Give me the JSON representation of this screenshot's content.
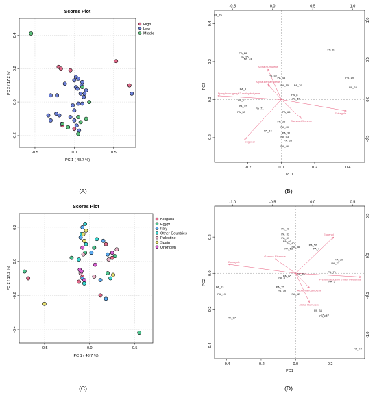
{
  "colors": {
    "High": "#e06a8a",
    "Low": "#6b7fd6",
    "Middle": "#5cc07a",
    "Bulgaria": "#e06a8a",
    "Egypt": "#4fc38f",
    "Italy": "#5aa9ef",
    "Other Countries": "#39d6d0",
    "Palestine": "#e9b3c8",
    "Spain": "#e5e070",
    "Unknown": "#d75fd0",
    "arrow": "#e8587a"
  },
  "chart_data": [
    {
      "panel": "(A)",
      "type": "scatter",
      "title": "Scores Plot",
      "xlabel": "PC 1 ( 48.7 %)",
      "ylabel": "PC 2 ( 17.2 %)",
      "xlim": [
        -0.7,
        0.78
      ],
      "ylim": [
        -0.27,
        0.5
      ],
      "xticks": [
        "-0.5",
        "0.0",
        "0.5"
      ],
      "xtick_values": [
        -0.5,
        0,
        0.5
      ],
      "yticks": [
        "-0.2",
        "0.0",
        "0.2",
        "0.4"
      ],
      "ytick_values": [
        -0.2,
        0,
        0.2,
        0.4
      ],
      "grid": true,
      "legend": "top-right",
      "legend_entries": [
        "High",
        "Low",
        "Middle"
      ],
      "series": [
        {
          "name": "High",
          "points": [
            [
              -0.2,
              0.21
            ],
            [
              -0.17,
              0.2
            ],
            [
              0.53,
              0.245
            ],
            [
              0.7,
              0.1
            ],
            [
              -0.05,
              0.19
            ],
            [
              -0.15,
              -0.14
            ],
            [
              0.0,
              -0.16
            ]
          ]
        },
        {
          "name": "Low",
          "points": [
            [
              0.73,
              0.05
            ],
            [
              -0.3,
              0.04
            ],
            [
              -0.22,
              0.04
            ],
            [
              -0.33,
              -0.08
            ],
            [
              -0.3,
              -0.11
            ],
            [
              -0.23,
              -0.07
            ],
            [
              -0.19,
              -0.08
            ],
            [
              -0.16,
              -0.13
            ],
            [
              -0.12,
              0.11
            ],
            [
              0.0,
              0.13
            ],
            [
              0.02,
              0.15
            ],
            [
              0.05,
              0.14
            ],
            [
              0.1,
              0.12
            ],
            [
              0.13,
              0.05
            ],
            [
              0.15,
              0.07
            ],
            [
              0.02,
              0.09
            ],
            [
              0.08,
              0.05
            ],
            [
              0.05,
              -0.01
            ],
            [
              -0.02,
              -0.02
            ],
            [
              -0.05,
              -0.09
            ],
            [
              0.0,
              -0.11
            ],
            [
              0.03,
              -0.14
            ],
            [
              0.06,
              -0.17
            ],
            [
              0.1,
              -0.01
            ],
            [
              0.12,
              0.03
            ],
            [
              0.09,
              0.1
            ],
            [
              0.04,
              0.08
            ],
            [
              0.0,
              -0.05
            ]
          ]
        },
        {
          "name": "Middle",
          "points": [
            [
              -0.55,
              0.41
            ],
            [
              0.19,
              0.0
            ],
            [
              0.15,
              -0.1
            ],
            [
              -0.15,
              -0.13
            ],
            [
              0.05,
              -0.09
            ],
            [
              0.08,
              -0.12
            ],
            [
              -0.08,
              -0.15
            ],
            [
              0.1,
              0.09
            ],
            [
              0.05,
              -0.19
            ]
          ]
        }
      ]
    },
    {
      "panel": "(B)",
      "type": "scatter",
      "title": "",
      "xlabel": "PC1",
      "ylabel": "PC2",
      "xlim": [
        -0.4,
        0.5
      ],
      "ylim": [
        -0.33,
        0.47
      ],
      "xticks": [
        "-0.2",
        "0.0",
        "0.2",
        "0.4"
      ],
      "xtick_values": [
        -0.2,
        0,
        0.2,
        0.4
      ],
      "yticks": [
        "-0.2",
        "0.0",
        "0.2",
        "0.4"
      ],
      "ytick_values": [
        -0.2,
        0,
        0.2,
        0.4
      ],
      "top_ticks": [
        "-0.5",
        "0.0",
        "0.5",
        "1.0"
      ],
      "top_tick_values": [
        -0.5,
        0,
        0.5,
        1
      ],
      "right_ticks": [
        "-0.5",
        "0.0",
        "0.5",
        "1.0"
      ],
      "right_tick_values": [
        -0.5,
        0,
        0.5,
        1
      ],
      "observations": [
        {
          "label": "PA_75",
          "x": -0.38,
          "y": 0.44
        },
        {
          "label": "PA_87",
          "x": 0.3,
          "y": 0.26
        },
        {
          "label": "PA_19",
          "x": 0.41,
          "y": 0.11
        },
        {
          "label": "PA_63",
          "x": 0.43,
          "y": 0.06
        },
        {
          "label": "PA_28",
          "x": -0.23,
          "y": 0.24
        },
        {
          "label": "PA_26",
          "x": -0.22,
          "y": 0.22
        },
        {
          "label": "PA_34",
          "x": -0.2,
          "y": 0.21
        },
        {
          "label": "PA_3",
          "x": -0.23,
          "y": 0.05
        },
        {
          "label": "PA_7",
          "x": -0.24,
          "y": -0.01
        },
        {
          "label": "PA_72",
          "x": -0.23,
          "y": -0.04
        },
        {
          "label": "PA_30",
          "x": -0.24,
          "y": -0.07
        },
        {
          "label": "PA_71",
          "x": -0.13,
          "y": -0.05
        },
        {
          "label": "PA_56",
          "x": 0.09,
          "y": 0.0
        },
        {
          "label": "PA_8",
          "x": 0.08,
          "y": 0.02
        },
        {
          "label": "PA_48",
          "x": 0.0,
          "y": 0.11
        },
        {
          "label": "PA_40",
          "x": 0.02,
          "y": -0.15
        },
        {
          "label": "PA_38",
          "x": 0.0,
          "y": -0.12
        },
        {
          "label": "PA_66",
          "x": 0.03,
          "y": -0.07
        },
        {
          "label": "PA_15",
          "x": 0.02,
          "y": 0.07
        },
        {
          "label": "PA_79",
          "x": 0.1,
          "y": 0.07
        },
        {
          "label": "PA_53",
          "x": 0.02,
          "y": -0.2
        },
        {
          "label": "PA_31",
          "x": 0.03,
          "y": -0.18
        },
        {
          "label": "PA_46",
          "x": 0.02,
          "y": -0.25
        },
        {
          "label": "PA_54",
          "x": -0.08,
          "y": -0.17
        },
        {
          "label": "PA_33",
          "x": 0.04,
          "y": -0.22
        },
        {
          "label": "PA_52",
          "x": -0.05,
          "y": 0.12
        }
      ],
      "variables": [
        {
          "label": "Eugenol",
          "x": -0.22,
          "y": -0.21
        },
        {
          "label": "Estragole",
          "x": 0.39,
          "y": -0.06
        },
        {
          "label": "Gamma-Elemene",
          "x": 0.12,
          "y": -0.1
        },
        {
          "label": "Alpha-Humulene",
          "x": -0.08,
          "y": 0.16
        },
        {
          "label": "Alpha-Bergamotene",
          "x": -0.08,
          "y": 0.08
        },
        {
          "label": "Prenylisoeugenyl 2-methylbutyrate",
          "x": -0.38,
          "y": 0.02
        }
      ]
    },
    {
      "panel": "(C)",
      "type": "scatter",
      "title": "Scores Plot",
      "xlabel": "PC 1 ( 48.7 %)",
      "ylabel": "PC 2 ( 17.2 %)",
      "xlim": [
        -0.78,
        0.7
      ],
      "ylim": [
        -0.48,
        0.28
      ],
      "xticks": [
        "-0.5",
        "0.0",
        "0.5"
      ],
      "xtick_values": [
        -0.5,
        0,
        0.5
      ],
      "yticks": [
        "-0.4",
        "-0.2",
        "0.0",
        "0.2"
      ],
      "ytick_values": [
        -0.4,
        -0.2,
        0,
        0.2
      ],
      "grid": true,
      "legend": "top-right",
      "legend_entries": [
        "Bulgaria",
        "Egypt",
        "Italy",
        "Other Countries",
        "Palestine",
        "Spain",
        "Unknown"
      ],
      "series": [
        {
          "name": "Bulgaria",
          "points": [
            [
              -0.68,
              -0.1
            ],
            [
              0.12,
              -0.2
            ],
            [
              -0.08,
              -0.09
            ],
            [
              0.25,
              0.02
            ],
            [
              0.18,
              0.1
            ],
            [
              -0.12,
              -0.12
            ]
          ]
        },
        {
          "name": "Egypt",
          "points": [
            [
              0.55,
              -0.42
            ],
            [
              -0.72,
              -0.06
            ],
            [
              -0.2,
              0.02
            ],
            [
              0.05,
              0.08
            ],
            [
              0.2,
              -0.07
            ],
            [
              0.28,
              0.03
            ],
            [
              -0.05,
              0.05
            ]
          ]
        },
        {
          "name": "Italy",
          "points": [
            [
              -0.08,
              0.2
            ],
            [
              0.18,
              -0.22
            ],
            [
              0.02,
              0.05
            ],
            [
              0.2,
              0.04
            ],
            [
              -0.1,
              0.14
            ],
            [
              0.15,
              0.12
            ],
            [
              -0.08,
              -0.1
            ],
            [
              0.12,
              -0.11
            ]
          ]
        },
        {
          "name": "Other Countries",
          "points": [
            [
              -0.05,
              0.22
            ],
            [
              -0.09,
              0.16
            ],
            [
              -0.12,
              0.01
            ],
            [
              -0.06,
              -0.13
            ],
            [
              -0.04,
              0.1
            ],
            [
              0.08,
              0.13
            ],
            [
              0.23,
              -0.1
            ]
          ]
        },
        {
          "name": "Palestine",
          "points": [
            [
              0.3,
              0.07
            ],
            [
              -0.07,
              0.04
            ],
            [
              -0.1,
              -0.07
            ],
            [
              0.21,
              0.01
            ],
            [
              0.05,
              -0.09
            ]
          ]
        },
        {
          "name": "Spain",
          "points": [
            [
              -0.5,
              -0.25
            ],
            [
              -0.07,
              0.16
            ],
            [
              -0.06,
              0.12
            ],
            [
              -0.04,
              0.18
            ],
            [
              0.26,
              -0.08
            ]
          ]
        },
        {
          "name": "Unknown",
          "points": [
            [
              0.25,
              0.05
            ],
            [
              -0.08,
              0.08
            ],
            [
              -0.11,
              -0.05
            ],
            [
              -0.09,
              -0.06
            ],
            [
              -0.06,
              -0.11
            ],
            [
              0.06,
              -0.02
            ]
          ]
        }
      ]
    },
    {
      "panel": "(D)",
      "type": "scatter",
      "title": "",
      "xlabel": "PC1",
      "ylabel": "PC2",
      "xlim": [
        -0.47,
        0.4
      ],
      "ylim": [
        -0.47,
        0.37
      ],
      "xticks": [
        "-0.4",
        "-0.2",
        "0.0",
        "0.2"
      ],
      "xtick_values": [
        -0.4,
        -0.2,
        0,
        0.2
      ],
      "yticks": [
        "-0.4",
        "-0.2",
        "0.0",
        "0.2"
      ],
      "ytick_values": [
        -0.4,
        -0.2,
        0,
        0.2
      ],
      "top_ticks": [
        "-1.0",
        "-0.5",
        "0.0",
        "0.5"
      ],
      "top_tick_values": [
        -1,
        -0.5,
        0,
        0.5
      ],
      "right_ticks": [
        "-1.0",
        "-0.5",
        "0.0",
        "0.5"
      ],
      "right_tick_values": [
        -1,
        -0.5,
        0,
        0.5
      ],
      "observations": [
        {
          "label": "PA_75",
          "x": 0.36,
          "y": -0.42
        },
        {
          "label": "PA_87",
          "x": -0.37,
          "y": -0.25
        },
        {
          "label": "PA_63",
          "x": -0.44,
          "y": -0.08
        },
        {
          "label": "PA_19",
          "x": -0.43,
          "y": -0.12
        },
        {
          "label": "PA_28",
          "x": 0.17,
          "y": -0.23
        },
        {
          "label": "PA_34",
          "x": 0.13,
          "y": -0.21
        },
        {
          "label": "PA_26",
          "x": 0.16,
          "y": -0.24
        },
        {
          "label": "PA_30",
          "x": 0.25,
          "y": 0.07
        },
        {
          "label": "PA_72",
          "x": 0.23,
          "y": 0.05
        },
        {
          "label": "PA_71",
          "x": 0.21,
          "y": 0.0
        },
        {
          "label": "PA_3",
          "x": 0.21,
          "y": -0.05
        },
        {
          "label": "PA_7",
          "x": 0.12,
          "y": 0.13
        },
        {
          "label": "PA_56",
          "x": 0.1,
          "y": 0.15
        },
        {
          "label": "PA_48",
          "x": -0.06,
          "y": 0.24
        },
        {
          "label": "PA_33",
          "x": -0.06,
          "y": 0.21
        },
        {
          "label": "PA_46",
          "x": -0.05,
          "y": 0.17
        },
        {
          "label": "PA_31",
          "x": -0.06,
          "y": 0.19
        },
        {
          "label": "PA_53",
          "x": -0.04,
          "y": 0.13
        },
        {
          "label": "PA_38",
          "x": 0.0,
          "y": 0.14
        },
        {
          "label": "PA_40",
          "x": -0.03,
          "y": 0.16
        },
        {
          "label": "PA_66",
          "x": -0.05,
          "y": -0.02
        },
        {
          "label": "PA_8",
          "x": -0.08,
          "y": -0.03
        },
        {
          "label": "PA_15",
          "x": -0.09,
          "y": -0.08
        },
        {
          "label": "PA_79",
          "x": -0.08,
          "y": -0.1
        },
        {
          "label": "PA_52",
          "x": 0.0,
          "y": -0.12
        },
        {
          "label": "PA_35",
          "x": 0.03,
          "y": -0.01
        }
      ],
      "variables": [
        {
          "label": "Eugenol",
          "x": 0.22,
          "y": 0.2
        },
        {
          "label": "Estragole",
          "x": -0.39,
          "y": 0.05
        },
        {
          "label": "Gamma-Elemene",
          "x": -0.12,
          "y": 0.08
        },
        {
          "label": "Alpha-Humulene",
          "x": 0.08,
          "y": -0.16
        },
        {
          "label": "Alpha-Bergamotene",
          "x": 0.08,
          "y": -0.08
        },
        {
          "label": "Prenylisoeugenyl 2-methylbutyrate",
          "x": 0.38,
          "y": -0.02
        }
      ]
    }
  ],
  "panel_labels": [
    "(A)",
    "(B)",
    "(C)",
    "(D)"
  ]
}
